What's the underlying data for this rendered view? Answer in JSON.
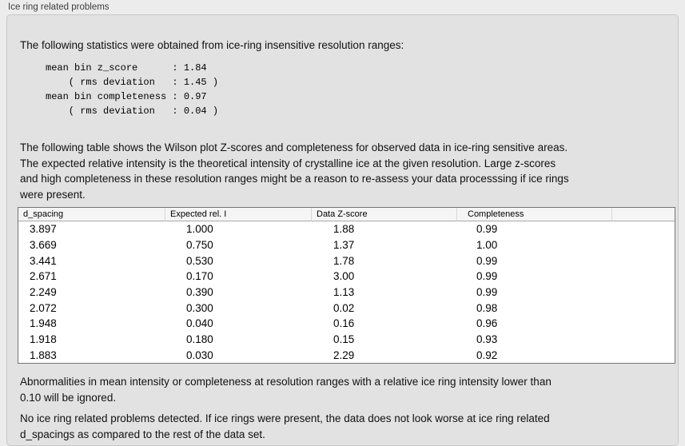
{
  "panel": {
    "label": "Ice ring related problems"
  },
  "intro": "The following statistics were obtained from ice-ring insensitive resolution ranges:",
  "stats_block_lines": [
    "mean bin z_score      : 1.84",
    "    ( rms deviation   : 1.45 )",
    "mean bin completeness : 0.97",
    "    ( rms deviation   : 0.04 )"
  ],
  "table_intro_lines": [
    "The following table shows the Wilson plot Z-scores and completeness for observed data in ice-ring sensitive areas.",
    "The expected relative intensity is the theoretical intensity of crystalline ice at the given resolution. Large z-scores",
    "and high completeness in these resolution ranges might be a reason to re-assess your data processsing if ice rings",
    "were present."
  ],
  "table": {
    "columns": [
      "d_spacing",
      "Expected rel. I",
      "Data Z-score",
      "Completeness"
    ],
    "rows": [
      [
        "3.897",
        "1.000",
        "1.88",
        "0.99"
      ],
      [
        "3.669",
        "0.750",
        "1.37",
        "1.00"
      ],
      [
        "3.441",
        "0.530",
        "1.78",
        "0.99"
      ],
      [
        "2.671",
        "0.170",
        "3.00",
        "0.99"
      ],
      [
        "2.249",
        "0.390",
        "1.13",
        "0.99"
      ],
      [
        "2.072",
        "0.300",
        "0.02",
        "0.98"
      ],
      [
        "1.948",
        "0.040",
        "0.16",
        "0.96"
      ],
      [
        "1.918",
        "0.180",
        "0.15",
        "0.93"
      ],
      [
        "1.883",
        "0.030",
        "2.29",
        "0.92"
      ]
    ]
  },
  "note_lines": [
    "Abnormalities in mean intensity or completeness at resolution ranges with a relative ice ring intensity lower than",
    "0.10 will be ignored."
  ],
  "conclusion_lines": [
    "No ice ring related problems detected. If ice rings were present, the data does not look worse at ice ring related",
    "d_spacings as compared to the rest of the data set."
  ]
}
